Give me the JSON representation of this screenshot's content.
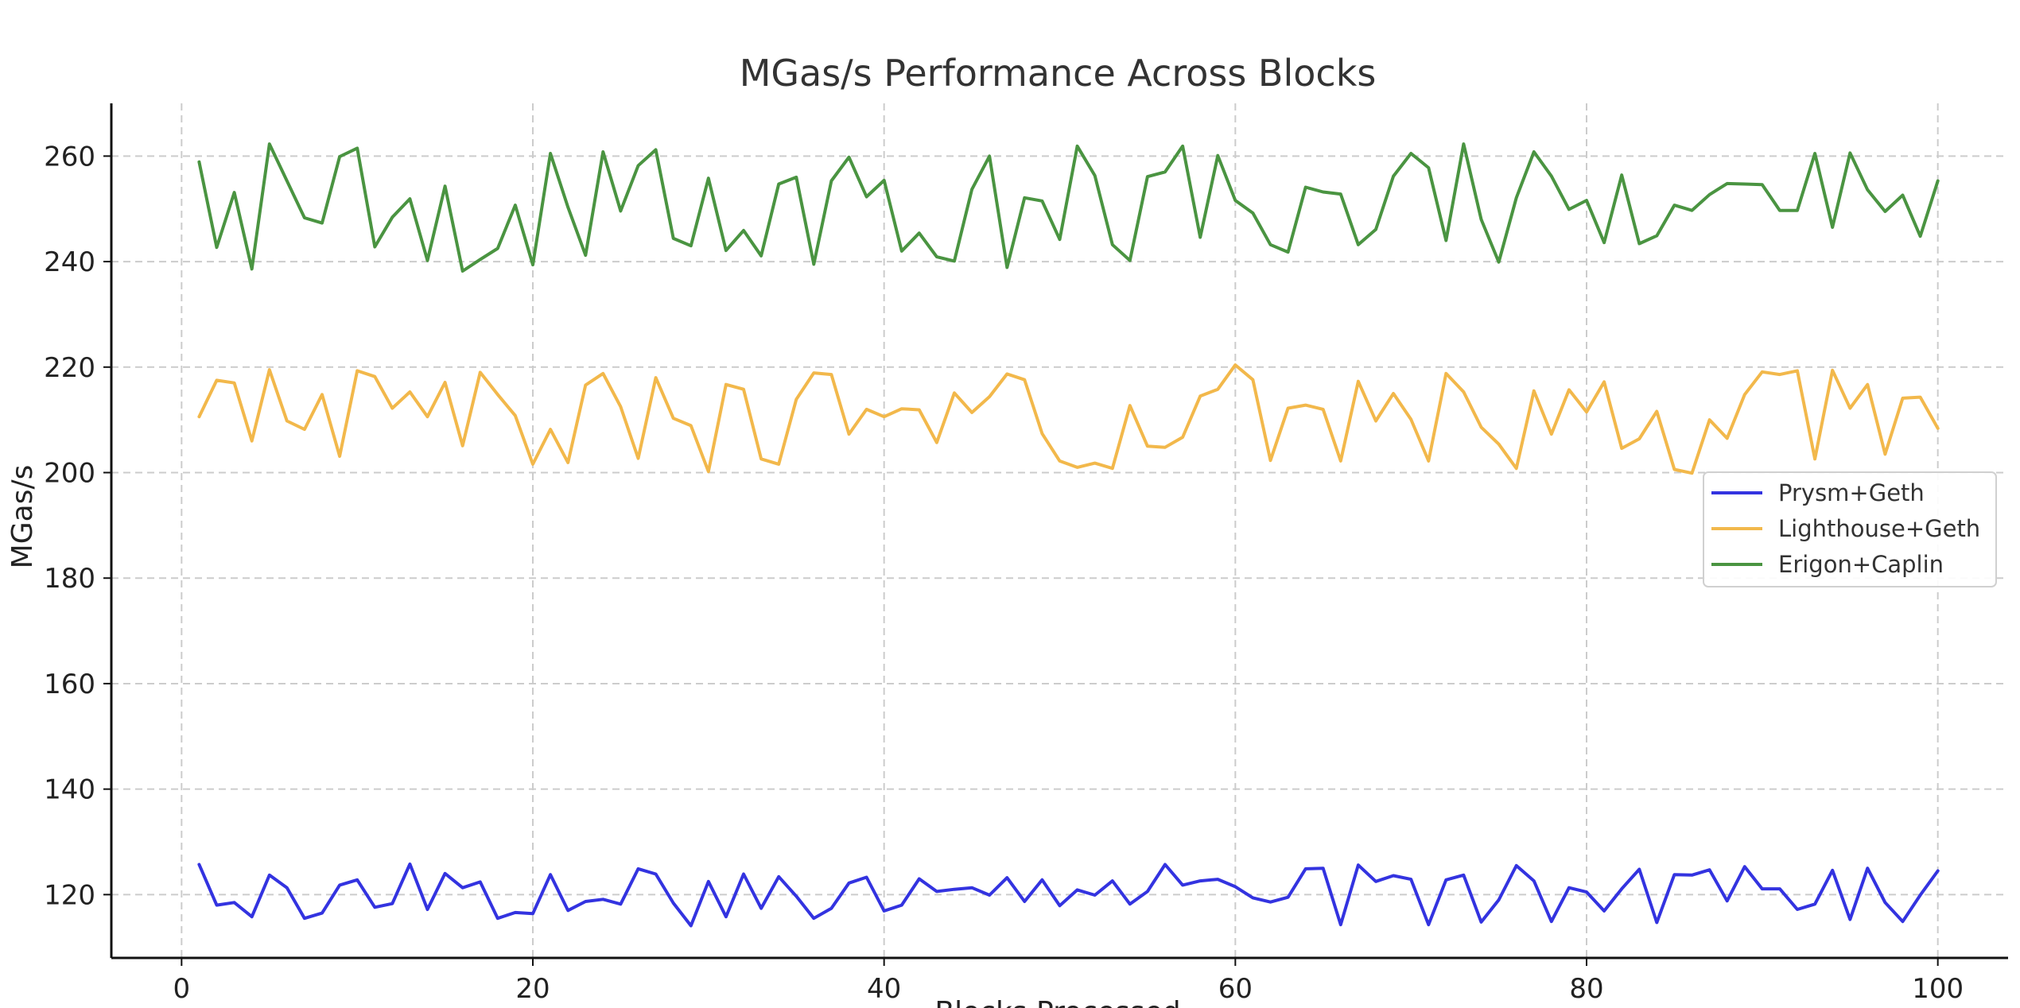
{
  "chart_data": {
    "type": "line",
    "title": "MGas/s Performance Across Blocks",
    "xlabel": "Blocks Processed",
    "ylabel": "MGas/s",
    "xlim": [
      -4,
      104
    ],
    "ylim": [
      108,
      270
    ],
    "xticks": [
      0,
      20,
      40,
      60,
      80,
      100
    ],
    "yticks": [
      120,
      140,
      160,
      180,
      200,
      220,
      240,
      260
    ],
    "grid": true,
    "legend_position": "center-right",
    "x": [
      1,
      2,
      3,
      4,
      5,
      6,
      7,
      8,
      9,
      10,
      11,
      12,
      13,
      14,
      15,
      16,
      17,
      18,
      19,
      20,
      21,
      22,
      23,
      24,
      25,
      26,
      27,
      28,
      29,
      30,
      31,
      32,
      33,
      34,
      35,
      36,
      37,
      38,
      39,
      40,
      41,
      42,
      43,
      44,
      45,
      46,
      47,
      48,
      49,
      50,
      51,
      52,
      53,
      54,
      55,
      56,
      57,
      58,
      59,
      60,
      61,
      62,
      63,
      64,
      65,
      66,
      67,
      68,
      69,
      70,
      71,
      72,
      73,
      74,
      75,
      76,
      77,
      78,
      79,
      80,
      81,
      82,
      83,
      84,
      85,
      86,
      87,
      88,
      89,
      90,
      91,
      92,
      93,
      94,
      95,
      96,
      97,
      98,
      99,
      100
    ],
    "series": [
      {
        "name": "Prysm+Geth",
        "color": "#3333e0",
        "values": [
          125.7,
          118.0,
          118.5,
          115.8,
          123.7,
          121.3,
          115.5,
          116.5,
          121.8,
          122.8,
          117.6,
          118.3,
          125.8,
          117.2,
          124.0,
          121.3,
          122.4,
          115.5,
          116.6,
          116.4,
          123.8,
          117.0,
          118.7,
          119.1,
          118.2,
          124.9,
          123.9,
          118.4,
          114.1,
          122.5,
          115.8,
          123.9,
          117.4,
          123.4,
          119.7,
          115.5,
          117.4,
          122.2,
          123.3,
          116.9,
          118.0,
          123.0,
          120.6,
          121.0,
          121.3,
          119.9,
          123.2,
          118.7,
          122.8,
          117.9,
          120.9,
          119.9,
          122.6,
          118.2,
          120.6,
          125.7,
          121.8,
          122.6,
          122.9,
          121.5,
          119.4,
          118.6,
          119.5,
          124.9,
          125.0,
          114.3,
          125.6,
          122.5,
          123.6,
          122.9,
          114.3,
          122.8,
          123.7,
          114.8,
          119.0,
          125.5,
          122.6,
          114.9,
          121.3,
          120.5,
          116.9,
          121.1,
          124.8,
          114.7,
          123.8,
          123.7,
          124.7,
          118.8,
          125.3,
          121.1,
          121.1,
          117.2,
          118.2,
          124.6,
          115.3,
          125.0,
          118.5,
          114.9,
          119.9,
          124.5
        ]
      },
      {
        "name": "Lighthouse+Geth",
        "color": "#f2b84b",
        "values": [
          210.6,
          217.5,
          217.0,
          206.0,
          219.5,
          209.8,
          208.2,
          214.8,
          203.1,
          219.3,
          218.2,
          212.2,
          215.3,
          210.6,
          217.1,
          205.1,
          219.0,
          214.8,
          210.8,
          201.6,
          208.2,
          201.9,
          216.6,
          218.8,
          212.5,
          202.7,
          218.0,
          210.3,
          208.9,
          200.2,
          216.7,
          215.8,
          202.6,
          201.6,
          213.9,
          218.9,
          218.6,
          207.3,
          212.0,
          210.6,
          212.1,
          211.9,
          205.7,
          215.1,
          211.4,
          214.4,
          218.7,
          217.6,
          207.4,
          202.2,
          201.0,
          201.8,
          200.8,
          212.7,
          205.0,
          204.8,
          206.7,
          214.5,
          215.8,
          220.4,
          217.6,
          202.3,
          212.2,
          212.8,
          212.0,
          202.2,
          217.3,
          209.8,
          215.0,
          210.1,
          202.2,
          218.8,
          215.3,
          208.6,
          205.4,
          200.8,
          215.5,
          207.3,
          215.7,
          211.5,
          217.2,
          204.6,
          206.4,
          211.6,
          200.6,
          199.9,
          210.0,
          206.5,
          214.8,
          219.1,
          218.6,
          219.3,
          202.6,
          219.4,
          212.2,
          216.7,
          203.5,
          214.1,
          214.3,
          208.4
        ]
      },
      {
        "name": "Erigon+Caplin",
        "color": "#4a9441",
        "values": [
          258.9,
          242.7,
          253.1,
          238.6,
          262.3,
          255.3,
          248.3,
          247.3,
          259.9,
          261.5,
          242.8,
          248.4,
          251.9,
          240.2,
          254.3,
          238.2,
          240.4,
          242.5,
          250.7,
          239.4,
          260.5,
          250.3,
          241.2,
          260.8,
          249.6,
          258.2,
          261.2,
          244.4,
          243.0,
          255.8,
          242.1,
          245.9,
          241.1,
          254.7,
          256.0,
          239.5,
          255.3,
          259.8,
          252.3,
          255.4,
          242.0,
          245.4,
          240.9,
          240.1,
          253.7,
          260.0,
          238.9,
          252.1,
          251.5,
          244.2,
          261.9,
          256.3,
          243.2,
          240.2,
          256.1,
          257.0,
          261.9,
          244.6,
          260.1,
          251.6,
          249.2,
          243.2,
          241.8,
          254.1,
          253.2,
          252.8,
          243.2,
          246.1,
          256.2,
          260.5,
          257.8,
          244.0,
          262.3,
          248.0,
          239.9,
          252.1,
          260.8,
          256.2,
          249.9,
          251.6,
          243.6,
          256.4,
          243.4,
          244.9,
          250.7,
          249.7,
          252.7,
          254.8,
          254.7,
          254.6,
          249.7,
          249.7,
          260.5,
          246.5,
          260.6,
          253.6,
          249.5,
          252.6,
          244.8,
          255.3
        ]
      }
    ]
  }
}
